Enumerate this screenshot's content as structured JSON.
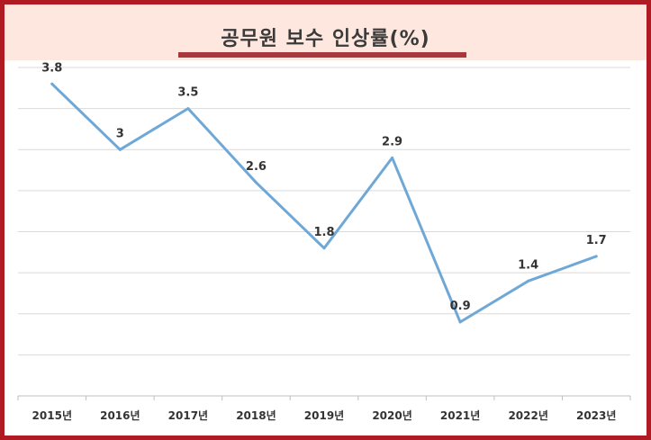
{
  "chart_data": {
    "type": "line",
    "title": "공무원 보수 인상률(%)",
    "categories": [
      "2015년",
      "2016년",
      "2017년",
      "2018년",
      "2019년",
      "2020년",
      "2021년",
      "2022년",
      "2023년"
    ],
    "series": [
      {
        "values": [
          3.8,
          3,
          3.5,
          2.6,
          1.8,
          2.9,
          0.9,
          1.4,
          1.7
        ],
        "labels": [
          "3.8",
          "3",
          "3.5",
          "2.6",
          "1.8",
          "2.9",
          "0.9",
          "1.4",
          "1.7"
        ],
        "color": "#6fa8d6"
      }
    ],
    "ylim": [
      0,
      4
    ],
    "grid": true,
    "y_tick_labels_shown": false,
    "accent_colors": {
      "frame": "#b01a22",
      "header_band": "#fde7de",
      "underline": "#a8383d",
      "gridline": "#d9d9d9"
    }
  }
}
